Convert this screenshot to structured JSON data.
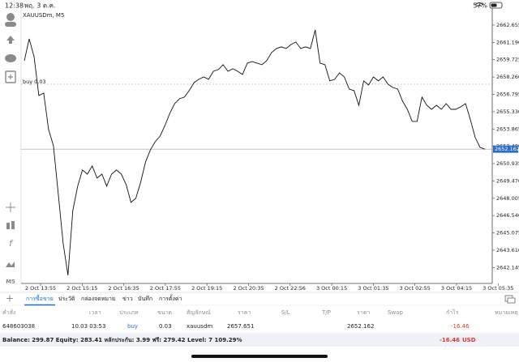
{
  "status_bar": {
    "time": "12:38",
    "date": "พฤ. 3 ต.ค.",
    "battery": "57%"
  },
  "toolbar": {
    "timeframe": "M5"
  },
  "chart": {
    "symbol": "XAUUSDm, M5",
    "buy_label": "buy 0.03",
    "current_price": 2652.162,
    "ylim": [
      2640.8,
      2664.09
    ],
    "yticks": [
      2662.655,
      {
        "value": 2661.19,
        "label": "2661.190"
      },
      2659.725,
      {
        "value": 2658.26,
        "label": "2658.260"
      },
      2656.795,
      {
        "value": 2655.33,
        "label": "2655.330"
      },
      2653.865,
      {
        "value": 2652.4,
        "label": "2652.400"
      },
      2650.935,
      {
        "value": 2649.47,
        "label": "2649.470"
      },
      2648.005,
      {
        "value": 2646.54,
        "label": "2646.540"
      },
      2645.075,
      {
        "value": 2643.61,
        "label": "2643.610"
      },
      2642.145
    ],
    "xticks": [
      "2 Oct 13:55",
      "2 Oct 15:15",
      "2 Oct 16:35",
      "2 Oct 17:55",
      "2 Oct 19:15",
      "2 Oct 20:35",
      "2 Oct 22:56",
      "3 Oct 00:15",
      "3 Oct 01:35",
      "3 Oct 02:55",
      "3 Oct 04:15",
      "3 Oct 05:35"
    ],
    "values": [
      2659.64,
      2661.49,
      2659.98,
      2656.7,
      2656.9,
      2653.82,
      2652.45,
      2648.34,
      2644.23,
      2641.49,
      2646.97,
      2649.03,
      2650.4,
      2650.05,
      2650.74,
      2649.71,
      2650.05,
      2649.03,
      2650.05,
      2650.4,
      2650.05,
      2649.16,
      2647.66,
      2648.0,
      2649.37,
      2651.08,
      2652.11,
      2652.79,
      2653.27,
      2654.16,
      2655.19,
      2656.01,
      2656.42,
      2656.56,
      2657.11,
      2657.79,
      2658.07,
      2658.27,
      2658.07,
      2658.75,
      2658.89,
      2659.3,
      2658.75,
      2658.96,
      2658.75,
      2658.48,
      2659.44,
      2659.57,
      2659.44,
      2659.3,
      2659.64,
      2660.33,
      2660.67,
      2660.81,
      2660.67,
      2661.01,
      2661.22,
      2660.67,
      2660.81,
      2660.67,
      2662.24,
      2659.44,
      2659.3,
      2657.93,
      2658.07,
      2658.61,
      2658.27,
      2657.24,
      2657.11,
      2655.87,
      2657.93,
      2657.59,
      2658.27,
      2657.93,
      2658.27,
      2657.66,
      2657.38,
      2657.24,
      2656.22,
      2655.53,
      2654.51,
      2654.51,
      2656.56,
      2655.87,
      2655.53,
      2655.87,
      2655.53,
      2656.01,
      2655.53,
      2655.53,
      2655.74,
      2656.01,
      2654.64,
      2653.14,
      2652.31,
      2652.16
    ]
  },
  "tabs": [
    "การซื้อขาย",
    "ประวัติ",
    "กล่องจดหมาย",
    "ข่าว",
    "บันทึก",
    "การตั้งค่า"
  ],
  "positions": {
    "headers": [
      "คำสั่ง",
      "เวลา",
      "ประเภท",
      "ขนาด",
      "สัญลักษณ์",
      "ราคา",
      "S/L",
      "T/P",
      "ราคา",
      "Swap",
      "กำไร",
      "หมายเหตุ"
    ],
    "rows": [
      {
        "order": "648603038",
        "time": "10.03 03:53",
        "type": "buy",
        "volume": "0.03",
        "symbol": "xauusdm",
        "price": 2657.651,
        "current": "2652.162",
        "profit": "-16.46"
      }
    ]
  },
  "summary": {
    "balance": "Balance: 299.87 Equity: 283.41 หลักประกัน: 3.99 ฟรี: 279.42 Level: 7 109.29%",
    "profit": "-16.46",
    "currency": "USD"
  }
}
